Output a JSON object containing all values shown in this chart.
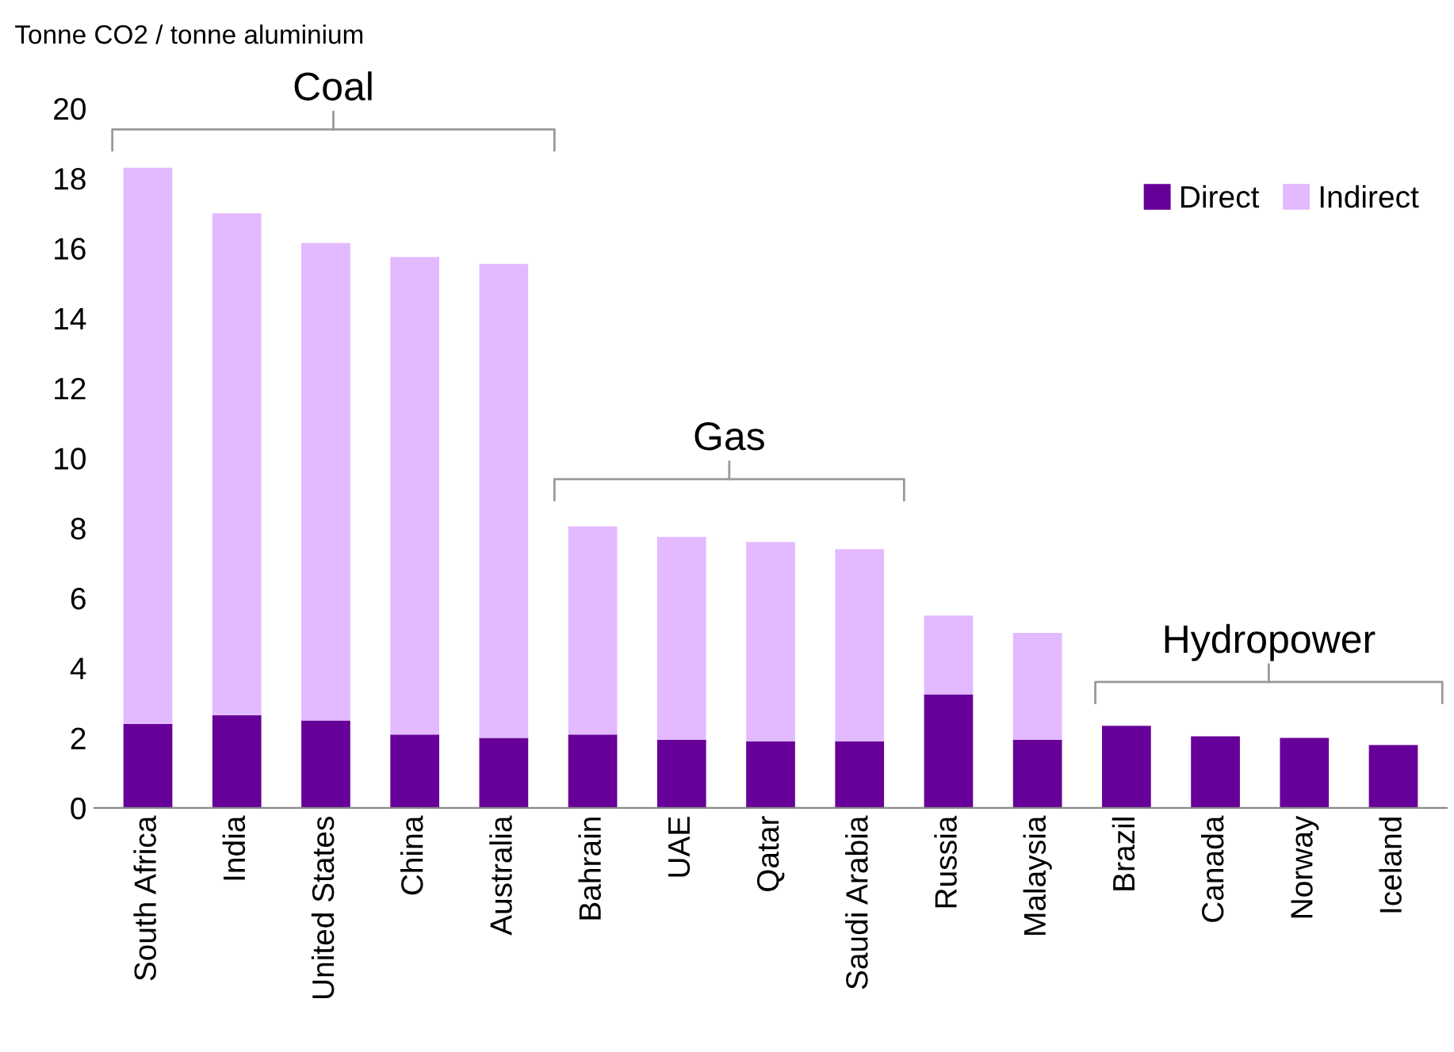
{
  "chart_data": {
    "type": "bar",
    "stacked": true,
    "ylabel": "Tonne CO2 / tonne aluminium",
    "categories": [
      "South Africa",
      "India",
      "United States",
      "China",
      "Australia",
      "Bahrain",
      "UAE",
      "Qatar",
      "Saudi Arabia",
      "Russia",
      "Malaysia",
      "Brazil",
      "Canada",
      "Norway",
      "Iceland"
    ],
    "series": [
      {
        "name": "Direct",
        "color": "#660099",
        "values": [
          2.4,
          2.65,
          2.5,
          2.1,
          2.0,
          2.1,
          1.95,
          1.9,
          1.9,
          3.25,
          1.95,
          2.35,
          2.05,
          2.0,
          1.8
        ]
      },
      {
        "name": "Indirect",
        "color": "#e3b9ff",
        "values": [
          15.9,
          14.35,
          13.65,
          13.65,
          13.55,
          5.95,
          5.8,
          5.7,
          5.5,
          2.25,
          3.05,
          0,
          0,
          0,
          0
        ]
      }
    ],
    "ylim": [
      0,
      20
    ],
    "yticks": [
      0,
      2,
      4,
      6,
      8,
      10,
      12,
      14,
      16,
      18,
      20
    ],
    "grid": false,
    "legend": "top right",
    "annotations": [
      "Coal",
      "Gas",
      "Hydropower"
    ]
  }
}
